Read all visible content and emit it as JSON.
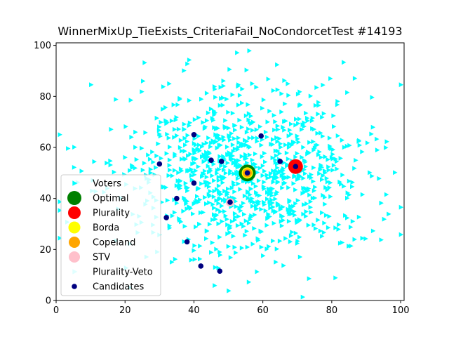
{
  "chart_data": {
    "type": "scatter",
    "title": "WinnerMixUp_TieExists_CriteriaFail_NoCondorcetTest #14193",
    "xlabel": "",
    "ylabel": "",
    "xlim": [
      0,
      101
    ],
    "ylim": [
      0,
      101
    ],
    "x_ticks": [
      "0",
      "20",
      "40",
      "60",
      "80",
      "100"
    ],
    "y_ticks": [
      "0",
      "20",
      "40",
      "60",
      "80",
      "100"
    ],
    "grid": false,
    "legend_position": "lower-left",
    "legend": [
      {
        "label": "Voters",
        "marker": "triangle-right",
        "color": "#00ffff"
      },
      {
        "label": "Optimal",
        "marker": "circle",
        "color": "#008000"
      },
      {
        "label": "Plurality",
        "marker": "circle",
        "color": "#ff0000"
      },
      {
        "label": "Borda",
        "marker": "circle",
        "color": "#ffff00"
      },
      {
        "label": "Copeland",
        "marker": "circle",
        "color": "#ffa500"
      },
      {
        "label": "STV",
        "marker": "circle",
        "color": "#ffc0cb"
      },
      {
        "label": "Plurality-Veto",
        "marker": "triangle-right",
        "color": "#e0ffff"
      },
      {
        "label": "Candidates",
        "marker": "circle",
        "color": "#000080"
      }
    ],
    "voters": {
      "name": "Voters",
      "color": "#00ffff",
      "count": 1000,
      "center": [
        54,
        50
      ],
      "spread": [
        18,
        17
      ]
    },
    "candidates": {
      "name": "Candidates",
      "color": "#000080",
      "points": [
        [
          40,
          65
        ],
        [
          30,
          53.5
        ],
        [
          59.5,
          64.5
        ],
        [
          45,
          55
        ],
        [
          48,
          54.5
        ],
        [
          65,
          54.5
        ],
        [
          69.5,
          52.5
        ],
        [
          55.5,
          50
        ],
        [
          40,
          46
        ],
        [
          35,
          40
        ],
        [
          50.5,
          38.5
        ],
        [
          32,
          32.5
        ],
        [
          38,
          23
        ],
        [
          42,
          13.5
        ],
        [
          47.5,
          11.5
        ]
      ]
    },
    "winners": [
      {
        "name": "Optimal",
        "color": "#008000",
        "x": 55.5,
        "y": 50
      },
      {
        "name": "Plurality",
        "color": "#ff0000",
        "x": 69.5,
        "y": 52.5
      },
      {
        "name": "Borda",
        "color": "#ffff00",
        "x": 55.5,
        "y": 50
      },
      {
        "name": "Copeland",
        "color": "#ffa500",
        "x": 55.5,
        "y": 50
      },
      {
        "name": "STV",
        "color": "#ffc0cb",
        "x": 50.5,
        "y": 38.5
      },
      {
        "name": "Plurality-Veto",
        "color": "#e0ffff",
        "x": 50.5,
        "y": 38.5
      }
    ]
  }
}
